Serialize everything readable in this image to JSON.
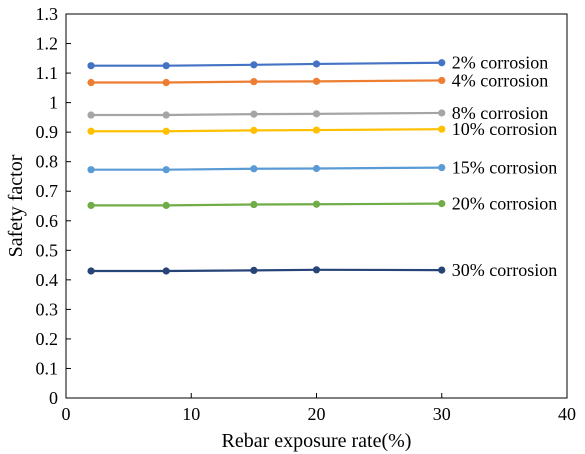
{
  "chart_data": {
    "type": "line",
    "xlabel": "Rebar exposure rate(%)",
    "ylabel": "Safety factor",
    "xlim": [
      0,
      40
    ],
    "ylim": [
      0,
      1.3
    ],
    "xticks": [
      "0",
      "10",
      "20",
      "30",
      "40"
    ],
    "yticks": [
      "0",
      "0.1",
      "0.2",
      "0.3",
      "0.4",
      "0.5",
      "0.6",
      "0.7",
      "0.8",
      "0.9",
      "1",
      "1.1",
      "1.2",
      "1.3"
    ],
    "grid": false,
    "x": [
      2,
      8,
      15,
      20,
      30
    ],
    "series": [
      {
        "name": "2% corrosion",
        "color": "#4472c4",
        "values": [
          1.125,
          1.125,
          1.128,
          1.131,
          1.135
        ]
      },
      {
        "name": "4% corrosion",
        "color": "#ed7d31",
        "values": [
          1.068,
          1.068,
          1.071,
          1.072,
          1.075
        ]
      },
      {
        "name": "8% corrosion",
        "color": "#a5a5a5",
        "values": [
          0.958,
          0.958,
          0.961,
          0.962,
          0.965
        ]
      },
      {
        "name": "10% corrosion",
        "color": "#ffc000",
        "values": [
          0.903,
          0.903,
          0.906,
          0.907,
          0.91
        ]
      },
      {
        "name": "15% corrosion",
        "color": "#5b9bd5",
        "values": [
          0.773,
          0.773,
          0.776,
          0.777,
          0.78
        ]
      },
      {
        "name": "20% corrosion",
        "color": "#70ad47",
        "values": [
          0.652,
          0.652,
          0.655,
          0.656,
          0.658
        ]
      },
      {
        "name": "30% corrosion",
        "color": "#264478",
        "values": [
          0.43,
          0.43,
          0.432,
          0.434,
          0.433
        ]
      }
    ]
  }
}
